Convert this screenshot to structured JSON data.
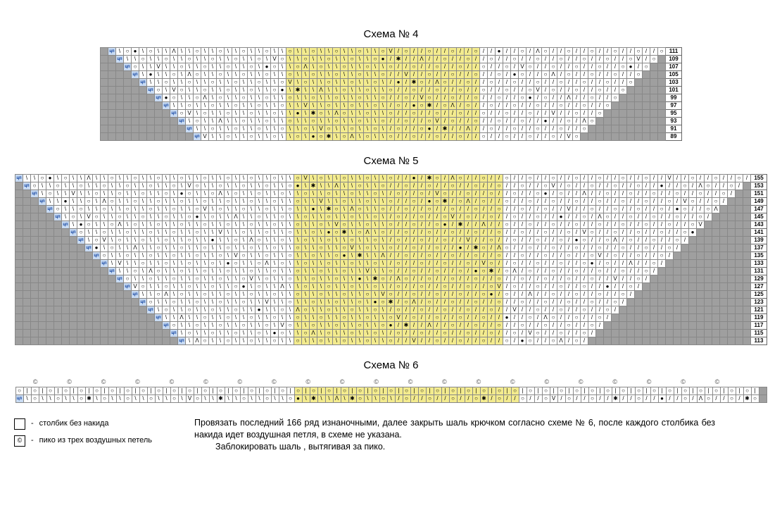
{
  "titles": {
    "c4": "Схема № 4",
    "c5": "Схема № 5",
    "c6": "Схема № 6"
  },
  "legend": {
    "sc": "столбик без накида",
    "pico": "пико из трех воздушных петель"
  },
  "instructions": {
    "p1": "Провязать последний 166 ряд изнаночными, далее закрыть шаль крючком согласно схеме № 6, после каждого столбика без накида идет воздушная петля, в схеме не указана.",
    "p2": "Заблокировать шаль , вытягивая за пико."
  },
  "symbols": {
    "o": "○",
    "sl": "/",
    "bs": "\\",
    "dot": "●",
    "v": "V",
    "a": "Λ",
    "star": "✱",
    "pico": "©",
    "tsn": "цп",
    "bar": "|"
  },
  "colors": {
    "grey": "#9f9f9f",
    "yellow": "#f3eb8e",
    "white": "#ffffff",
    "blue": "#c8dbf3",
    "border": "#888888",
    "text": "#000000"
  },
  "chart4": {
    "cols": 73,
    "rownums": [
      111,
      109,
      107,
      105,
      103,
      101,
      99,
      97,
      95,
      93,
      91,
      89
    ],
    "yellow_start": 24,
    "yellow_end": 48,
    "grey_left_start": 0,
    "grey_right_end": 72
  },
  "chart5": {
    "cols": 95,
    "rownums": [
      155,
      153,
      151,
      149,
      147,
      145,
      143,
      141,
      139,
      137,
      135,
      133,
      131,
      129,
      127,
      125,
      123,
      121,
      119,
      117,
      115,
      113
    ],
    "yellow_start": 36,
    "yellow_end": 62
  },
  "chart6": {
    "cols": 97,
    "yellow_start": 36,
    "yellow_end": 64,
    "pico_count": 21
  }
}
